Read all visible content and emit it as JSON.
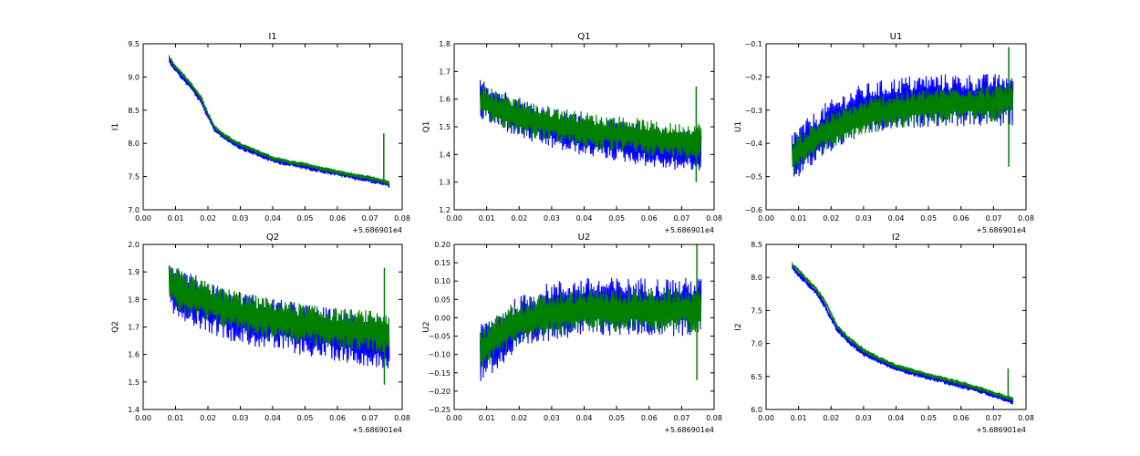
{
  "chart_data": [
    {
      "type": "line",
      "title": "I1",
      "ylabel": "I1",
      "x_offset_label": "+5.686901e4",
      "xlim": [
        0.0,
        0.08
      ],
      "ylim": [
        7.0,
        9.5
      ],
      "x_ticks": [
        "0.00",
        "0.01",
        "0.02",
        "0.03",
        "0.04",
        "0.05",
        "0.06",
        "0.07",
        "0.08"
      ],
      "y_ticks": [
        "7.0",
        "7.5",
        "8.0",
        "8.5",
        "9.0",
        "9.5"
      ],
      "grid": false,
      "series": [
        {
          "color": "#0000ff",
          "x": [
            0.008,
            0.01,
            0.012,
            0.015,
            0.018,
            0.02,
            0.022,
            0.025,
            0.03,
            0.035,
            0.04,
            0.045,
            0.05,
            0.055,
            0.06,
            0.065,
            0.07,
            0.073,
            0.076
          ],
          "y": [
            9.25,
            9.12,
            9.0,
            8.84,
            8.62,
            8.4,
            8.22,
            8.1,
            7.95,
            7.85,
            7.75,
            7.7,
            7.65,
            7.6,
            7.55,
            7.5,
            7.45,
            7.42,
            7.38
          ],
          "band": 0.1
        },
        {
          "color": "#007f00",
          "x": [
            0.008,
            0.01,
            0.012,
            0.015,
            0.018,
            0.02,
            0.022,
            0.025,
            0.03,
            0.035,
            0.04,
            0.045,
            0.05,
            0.055,
            0.06,
            0.065,
            0.07,
            0.073,
            0.076
          ],
          "y": [
            9.3,
            9.15,
            9.05,
            8.88,
            8.68,
            8.45,
            8.25,
            8.12,
            7.98,
            7.88,
            7.78,
            7.72,
            7.68,
            7.62,
            7.57,
            7.52,
            7.48,
            7.44,
            7.4
          ],
          "band": 0.07
        },
        {
          "color": "#007f00",
          "x": [
            0.0743,
            0.0743
          ],
          "y": [
            7.4,
            8.15
          ],
          "band": 0
        }
      ]
    },
    {
      "type": "line",
      "title": "Q1",
      "ylabel": "Q1",
      "x_offset_label": "+5.686901e4",
      "xlim": [
        0.0,
        0.08
      ],
      "ylim": [
        1.2,
        1.8
      ],
      "x_ticks": [
        "0.00",
        "0.01",
        "0.02",
        "0.03",
        "0.04",
        "0.05",
        "0.06",
        "0.07",
        "0.08"
      ],
      "y_ticks": [
        "1.2",
        "1.3",
        "1.4",
        "1.5",
        "1.6",
        "1.7",
        "1.8"
      ],
      "grid": false,
      "series": [
        {
          "color": "#0000ff",
          "x": [
            0.008,
            0.015,
            0.025,
            0.035,
            0.045,
            0.055,
            0.065,
            0.076
          ],
          "y": [
            1.6,
            1.56,
            1.51,
            1.48,
            1.46,
            1.44,
            1.42,
            1.41
          ],
          "band": 0.15
        },
        {
          "color": "#007f00",
          "x": [
            0.008,
            0.015,
            0.025,
            0.035,
            0.045,
            0.055,
            0.065,
            0.076
          ],
          "y": [
            1.59,
            1.56,
            1.52,
            1.5,
            1.48,
            1.47,
            1.45,
            1.45
          ],
          "band": 0.13
        },
        {
          "color": "#007f00",
          "x": [
            0.0745,
            0.0745
          ],
          "y": [
            1.3,
            1.645
          ],
          "band": 0
        }
      ]
    },
    {
      "type": "line",
      "title": "U1",
      "ylabel": "U1",
      "x_offset_label": "+5.686901e4",
      "xlim": [
        0.0,
        0.08
      ],
      "ylim": [
        -0.6,
        -0.1
      ],
      "x_ticks": [
        "0.00",
        "0.01",
        "0.02",
        "0.03",
        "0.04",
        "0.05",
        "0.06",
        "0.07",
        "0.08"
      ],
      "y_ticks": [
        "−0.6",
        "−0.5",
        "−0.4",
        "−0.3",
        "−0.2",
        "−0.1"
      ],
      "grid": false,
      "series": [
        {
          "color": "#0000ff",
          "x": [
            0.008,
            0.012,
            0.018,
            0.025,
            0.03,
            0.04,
            0.05,
            0.06,
            0.07,
            0.076
          ],
          "y": [
            -0.44,
            -0.41,
            -0.36,
            -0.32,
            -0.3,
            -0.28,
            -0.27,
            -0.27,
            -0.27,
            -0.27
          ],
          "band": 0.16
        },
        {
          "color": "#007f00",
          "x": [
            0.008,
            0.012,
            0.018,
            0.025,
            0.03,
            0.04,
            0.05,
            0.06,
            0.07,
            0.076
          ],
          "y": [
            -0.44,
            -0.41,
            -0.37,
            -0.34,
            -0.32,
            -0.3,
            -0.29,
            -0.28,
            -0.28,
            -0.27
          ],
          "band": 0.11
        },
        {
          "color": "#007f00",
          "x": [
            0.0747,
            0.0747
          ],
          "y": [
            -0.47,
            -0.11
          ],
          "band": 0
        }
      ]
    },
    {
      "type": "line",
      "title": "Q2",
      "ylabel": "Q2",
      "x_offset_label": "+5.686901e4",
      "xlim": [
        0.0,
        0.08
      ],
      "ylim": [
        1.4,
        2.0
      ],
      "x_ticks": [
        "0.00",
        "0.01",
        "0.02",
        "0.03",
        "0.04",
        "0.05",
        "0.06",
        "0.07",
        "0.08"
      ],
      "y_ticks": [
        "1.4",
        "1.5",
        "1.6",
        "1.7",
        "1.8",
        "1.9",
        "2.0"
      ],
      "grid": false,
      "series": [
        {
          "color": "#0000ff",
          "x": [
            0.008,
            0.015,
            0.025,
            0.035,
            0.045,
            0.055,
            0.065,
            0.076
          ],
          "y": [
            1.85,
            1.8,
            1.75,
            1.72,
            1.7,
            1.68,
            1.66,
            1.64
          ],
          "band": 0.19
        },
        {
          "color": "#007f00",
          "x": [
            0.008,
            0.015,
            0.025,
            0.035,
            0.045,
            0.055,
            0.065,
            0.076
          ],
          "y": [
            1.85,
            1.81,
            1.77,
            1.74,
            1.72,
            1.7,
            1.69,
            1.68
          ],
          "band": 0.15
        },
        {
          "color": "#007f00",
          "x": [
            0.0745,
            0.0745
          ],
          "y": [
            1.49,
            1.915
          ],
          "band": 0
        }
      ]
    },
    {
      "type": "line",
      "title": "U2",
      "ylabel": "U2",
      "x_offset_label": "+5.686901e4",
      "xlim": [
        0.0,
        0.08
      ],
      "ylim": [
        -0.25,
        0.2
      ],
      "x_ticks": [
        "0.00",
        "0.01",
        "0.02",
        "0.03",
        "0.04",
        "0.05",
        "0.06",
        "0.07",
        "0.08"
      ],
      "y_ticks": [
        "−0.25",
        "−0.20",
        "−0.15",
        "−0.10",
        "−0.05",
        "0.00",
        "0.05",
        "0.10",
        "0.15",
        "0.20"
      ],
      "grid": false,
      "series": [
        {
          "color": "#0000ff",
          "x": [
            0.008,
            0.012,
            0.018,
            0.025,
            0.03,
            0.04,
            0.05,
            0.06,
            0.07,
            0.076
          ],
          "y": [
            -0.1,
            -0.07,
            -0.03,
            0.0,
            0.02,
            0.03,
            0.03,
            0.03,
            0.03,
            0.03
          ],
          "band": 0.16
        },
        {
          "color": "#007f00",
          "x": [
            0.008,
            0.012,
            0.018,
            0.025,
            0.03,
            0.04,
            0.05,
            0.06,
            0.07,
            0.076
          ],
          "y": [
            -0.09,
            -0.06,
            -0.02,
            0.0,
            0.01,
            0.02,
            0.02,
            0.02,
            0.02,
            0.02
          ],
          "band": 0.12
        },
        {
          "color": "#007f00",
          "x": [
            0.0747,
            0.0747
          ],
          "y": [
            -0.17,
            0.2
          ],
          "band": 0
        }
      ]
    },
    {
      "type": "line",
      "title": "I2",
      "ylabel": "I2",
      "x_offset_label": "+5.686901e4",
      "xlim": [
        0.0,
        0.08
      ],
      "ylim": [
        6.0,
        8.5
      ],
      "x_ticks": [
        "0.00",
        "0.01",
        "0.02",
        "0.03",
        "0.04",
        "0.05",
        "0.06",
        "0.07",
        "0.08"
      ],
      "y_ticks": [
        "6.0",
        "6.5",
        "7.0",
        "7.5",
        "8.0",
        "8.5"
      ],
      "grid": false,
      "series": [
        {
          "color": "#0000ff",
          "x": [
            0.008,
            0.01,
            0.012,
            0.015,
            0.018,
            0.02,
            0.022,
            0.025,
            0.03,
            0.035,
            0.04,
            0.045,
            0.05,
            0.055,
            0.06,
            0.065,
            0.07,
            0.073,
            0.076
          ],
          "y": [
            8.15,
            8.05,
            7.95,
            7.8,
            7.58,
            7.38,
            7.2,
            7.05,
            6.85,
            6.73,
            6.63,
            6.56,
            6.49,
            6.43,
            6.36,
            6.3,
            6.22,
            6.17,
            6.12
          ],
          "band": 0.1
        },
        {
          "color": "#007f00",
          "x": [
            0.008,
            0.01,
            0.012,
            0.015,
            0.018,
            0.02,
            0.022,
            0.025,
            0.03,
            0.035,
            0.04,
            0.045,
            0.05,
            0.055,
            0.06,
            0.065,
            0.07,
            0.073,
            0.076
          ],
          "y": [
            8.2,
            8.1,
            8.0,
            7.85,
            7.65,
            7.45,
            7.25,
            7.1,
            6.9,
            6.77,
            6.66,
            6.59,
            6.52,
            6.46,
            6.4,
            6.33,
            6.25,
            6.2,
            6.16
          ],
          "band": 0.07
        },
        {
          "color": "#007f00",
          "x": [
            0.0745,
            0.0745
          ],
          "y": [
            6.2,
            6.62
          ],
          "band": 0
        }
      ]
    }
  ]
}
